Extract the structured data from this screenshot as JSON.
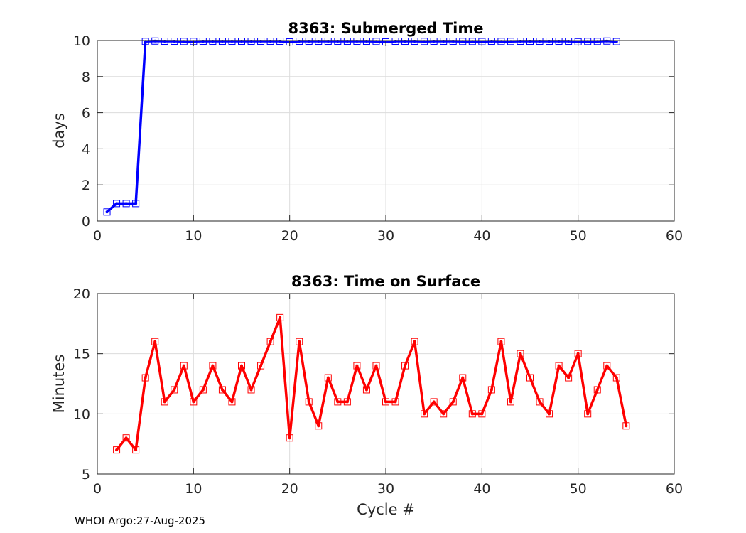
{
  "footer": "WHOI Argo:27-Aug-2025",
  "colors": {
    "top": "#0000ff",
    "bottom": "#ff0000",
    "grid": "#dcdcdc"
  },
  "chart_data": [
    {
      "type": "line",
      "title": "8363: Submerged Time",
      "xlabel": "",
      "ylabel": "days",
      "xlim": [
        0,
        60
      ],
      "ylim": [
        0,
        10
      ],
      "xticks": [
        "0",
        "10",
        "20",
        "30",
        "40",
        "50",
        "60"
      ],
      "yticks": [
        "0",
        "2",
        "4",
        "6",
        "8",
        "10"
      ],
      "grid": true,
      "marker": "square",
      "series": [
        {
          "x": [
            1,
            2,
            3,
            4,
            5,
            6,
            7,
            8,
            9,
            10,
            11,
            12,
            13,
            14,
            15,
            16,
            17,
            18,
            19,
            20,
            21,
            22,
            23,
            24,
            25,
            26,
            27,
            28,
            29,
            30,
            31,
            32,
            33,
            34,
            35,
            36,
            37,
            38,
            39,
            40,
            41,
            42,
            43,
            44,
            45,
            46,
            47,
            48,
            49,
            50,
            51,
            52,
            53,
            54
          ],
          "values": [
            0.5,
            0.97,
            0.97,
            0.97,
            9.95,
            9.97,
            9.96,
            9.96,
            9.95,
            9.95,
            9.96,
            9.96,
            9.96,
            9.96,
            9.96,
            9.96,
            9.96,
            9.96,
            9.96,
            9.92,
            9.96,
            9.96,
            9.96,
            9.96,
            9.96,
            9.96,
            9.96,
            9.96,
            9.95,
            9.92,
            9.96,
            9.96,
            9.96,
            9.95,
            9.96,
            9.96,
            9.96,
            9.95,
            9.95,
            9.94,
            9.96,
            9.95,
            9.95,
            9.96,
            9.96,
            9.96,
            9.96,
            9.96,
            9.96,
            9.93,
            9.95,
            9.95,
            9.97,
            9.94
          ]
        }
      ]
    },
    {
      "type": "line",
      "title": "8363: Time on Surface",
      "xlabel": "Cycle #",
      "ylabel": "Minutes",
      "xlim": [
        0,
        60
      ],
      "ylim": [
        5,
        20
      ],
      "xticks": [
        "0",
        "10",
        "20",
        "30",
        "40",
        "50",
        "60"
      ],
      "yticks": [
        "5",
        "10",
        "15",
        "20"
      ],
      "grid": true,
      "marker": "square",
      "series": [
        {
          "x": [
            2,
            3,
            4,
            5,
            6,
            7,
            8,
            9,
            10,
            11,
            12,
            13,
            14,
            15,
            16,
            17,
            18,
            19,
            20,
            21,
            22,
            23,
            24,
            25,
            26,
            27,
            28,
            29,
            30,
            31,
            32,
            33,
            34,
            35,
            36,
            37,
            38,
            39,
            40,
            41,
            42,
            43,
            44,
            45,
            46,
            47,
            48,
            49,
            50,
            51,
            52,
            53,
            54,
            55
          ],
          "values": [
            7,
            8,
            7,
            13,
            16,
            11,
            12,
            14,
            11,
            12,
            14,
            12,
            11,
            14,
            12,
            14,
            16,
            18,
            8,
            16,
            11,
            9,
            13,
            11,
            11,
            14,
            12,
            14,
            11,
            11,
            14,
            16,
            10,
            11,
            10,
            11,
            13,
            10,
            10,
            12,
            16,
            11,
            15,
            13,
            11,
            10,
            14,
            13,
            15,
            10,
            12,
            14,
            13,
            9
          ]
        }
      ]
    }
  ]
}
